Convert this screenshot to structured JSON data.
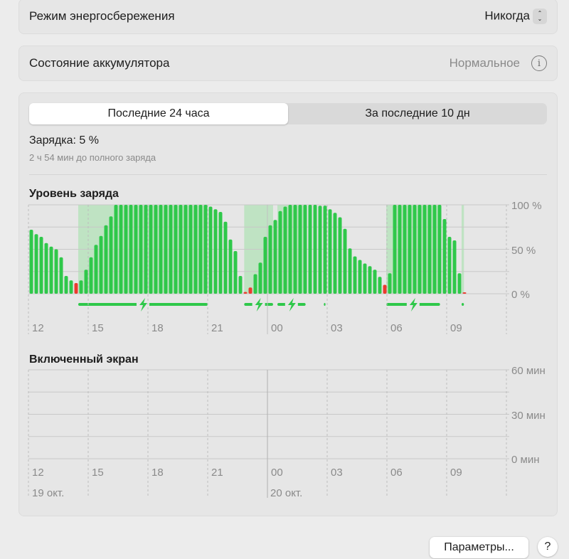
{
  "low_power": {
    "label": "Режим энергосбережения",
    "value": "Никогда",
    "icon": "up-down-chevron-icon"
  },
  "battery_health": {
    "label": "Состояние аккумулятора",
    "value": "Нормальное",
    "icon": "info-icon"
  },
  "tabs": [
    {
      "label": "Последние 24 часа",
      "selected": true
    },
    {
      "label": "За последние 10 дн",
      "selected": false
    }
  ],
  "status": {
    "charge": "Зарядка: 5 %",
    "time_to_full": "2 ч 54 мин до полного заряда"
  },
  "colors": {
    "battery_bar": "#2fc84a",
    "low_bar": "#eb3b2f",
    "charging_shade": "#bfe3c3"
  },
  "chart_data": [
    {
      "type": "bar",
      "title": "Уровень заряда",
      "interval_minutes": 15,
      "start": "12:00",
      "values": [
        72,
        67,
        64,
        57,
        53,
        50,
        41,
        20,
        15,
        12,
        15,
        27,
        41,
        55,
        65,
        77,
        87,
        100,
        100,
        100,
        100,
        100,
        100,
        100,
        100,
        100,
        100,
        100,
        100,
        100,
        100,
        100,
        100,
        100,
        100,
        100,
        98,
        95,
        92,
        81,
        61,
        48,
        20,
        2,
        7,
        22,
        35,
        64,
        77,
        83,
        93,
        98,
        100,
        100,
        100,
        100,
        100,
        100,
        99,
        99,
        95,
        91,
        86,
        73,
        51,
        42,
        38,
        34,
        31,
        27,
        19,
        10,
        23,
        100,
        100,
        100,
        100,
        100,
        100,
        100,
        100,
        100,
        100,
        84,
        64,
        60,
        23,
        1
      ],
      "low_threshold": 12,
      "charging_periods": [
        [
          "14:30",
          "21:00"
        ],
        [
          "22:50",
          "00:17"
        ],
        [
          "00:30",
          "01:55"
        ],
        [
          "02:50",
          "02:55"
        ],
        [
          "05:58",
          "08:40"
        ],
        [
          "09:45",
          "09:52"
        ]
      ],
      "y_ticks": [
        "100 %",
        "50 %",
        "0 %"
      ],
      "ylim": [
        0,
        100
      ],
      "x_ticks": [
        "12",
        "15",
        "18",
        "21",
        "00",
        "03",
        "06",
        "09"
      ],
      "grid": true
    },
    {
      "type": "bar",
      "title": "Включенный экран",
      "values": [],
      "y_ticks": [
        "60 мин",
        "30 мин",
        "0 мин"
      ],
      "ylim": [
        0,
        60
      ],
      "x_ticks": [
        "12",
        "15",
        "18",
        "21",
        "00",
        "03",
        "06",
        "09"
      ],
      "date_labels": [
        "19 окт.",
        "20 окт."
      ],
      "grid": true
    }
  ],
  "footer": {
    "settings_button": "Параметры...",
    "help_button": "?"
  }
}
